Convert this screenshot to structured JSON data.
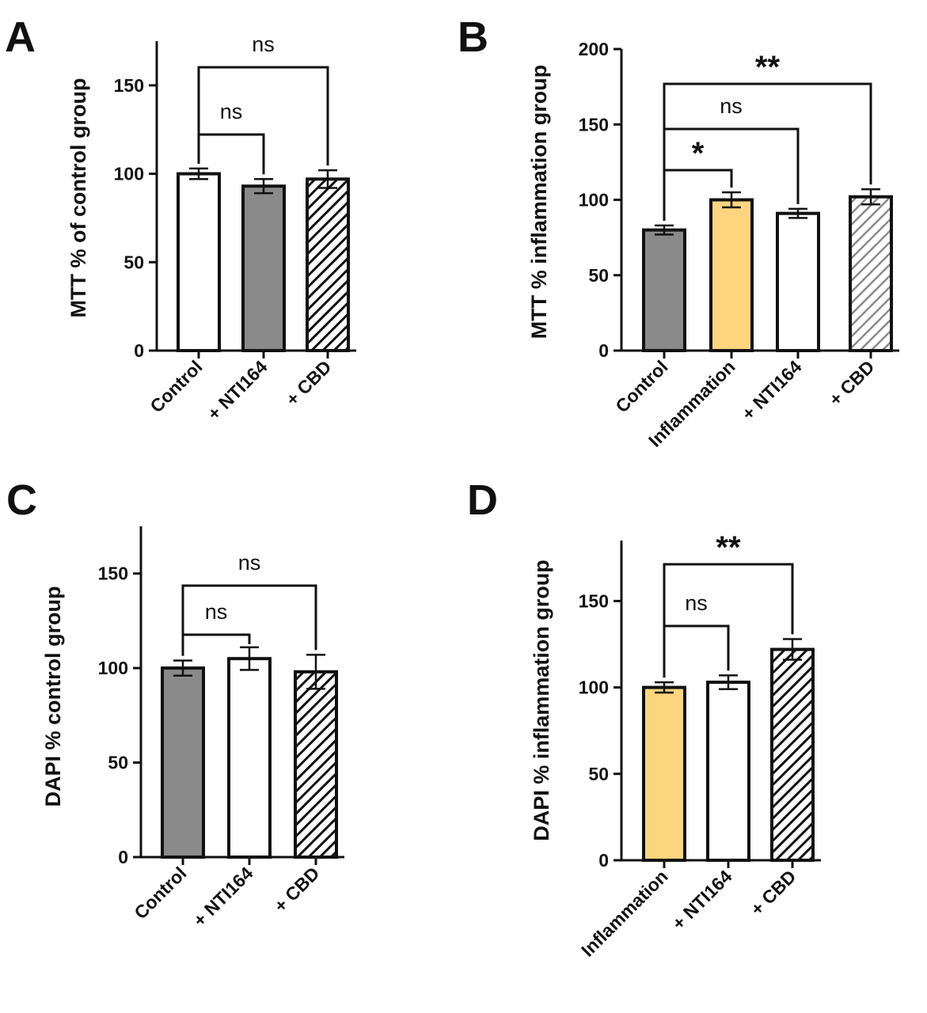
{
  "palette": {
    "gray": "#8a8a8a",
    "yellow": "#fdd57e",
    "white": "#ffffff",
    "axis": "#111111"
  },
  "chart_data": [
    {
      "panel": "A",
      "type": "bar",
      "ylabel": "MTT % of control group",
      "ylim": [
        0,
        175
      ],
      "yticks": [
        0,
        50,
        100,
        150
      ],
      "categories": [
        "Control",
        "+ NTI164",
        "+ CBD"
      ],
      "values": [
        100,
        93,
        97
      ],
      "errors": [
        3,
        4,
        5
      ],
      "fills": [
        "white",
        "gray",
        "hatch"
      ],
      "significance": [
        {
          "from": 0,
          "to": 1,
          "label": "ns"
        },
        {
          "from": 0,
          "to": 2,
          "label": "ns"
        }
      ]
    },
    {
      "panel": "B",
      "type": "bar",
      "ylabel": "MTT % inflammation group",
      "ylim": [
        0,
        200
      ],
      "yticks": [
        0,
        50,
        100,
        150,
        200
      ],
      "categories": [
        "Control",
        "Inflammation",
        "+ NTI164",
        "+ CBD"
      ],
      "values": [
        80,
        100,
        91,
        102
      ],
      "errors": [
        3,
        5,
        3,
        5
      ],
      "fills": [
        "gray",
        "yellow",
        "white",
        "hatch-gray"
      ],
      "significance": [
        {
          "from": 0,
          "to": 1,
          "label": "*"
        },
        {
          "from": 0,
          "to": 2,
          "label": "ns"
        },
        {
          "from": 0,
          "to": 3,
          "label": "**"
        }
      ]
    },
    {
      "panel": "C",
      "type": "bar",
      "ylabel": "DAPI % control group",
      "ylim": [
        0,
        175
      ],
      "yticks": [
        0,
        50,
        100,
        150
      ],
      "categories": [
        "Control",
        "+ NTI164",
        "+ CBD"
      ],
      "values": [
        100,
        105,
        98
      ],
      "errors": [
        4,
        6,
        9
      ],
      "fills": [
        "gray",
        "white",
        "hatch"
      ],
      "significance": [
        {
          "from": 0,
          "to": 1,
          "label": "ns"
        },
        {
          "from": 0,
          "to": 2,
          "label": "ns"
        }
      ]
    },
    {
      "panel": "D",
      "type": "bar",
      "ylabel": "DAPI % inflammation group",
      "ylim": [
        0,
        185
      ],
      "yticks": [
        0,
        50,
        100,
        150
      ],
      "categories": [
        "Inflammation",
        "+ NTI164",
        "+ CBD"
      ],
      "values": [
        100,
        103,
        122
      ],
      "errors": [
        3,
        4,
        6
      ],
      "fills": [
        "yellow",
        "white",
        "hatch"
      ],
      "significance": [
        {
          "from": 0,
          "to": 1,
          "label": "ns"
        },
        {
          "from": 0,
          "to": 2,
          "label": "**"
        }
      ]
    }
  ]
}
